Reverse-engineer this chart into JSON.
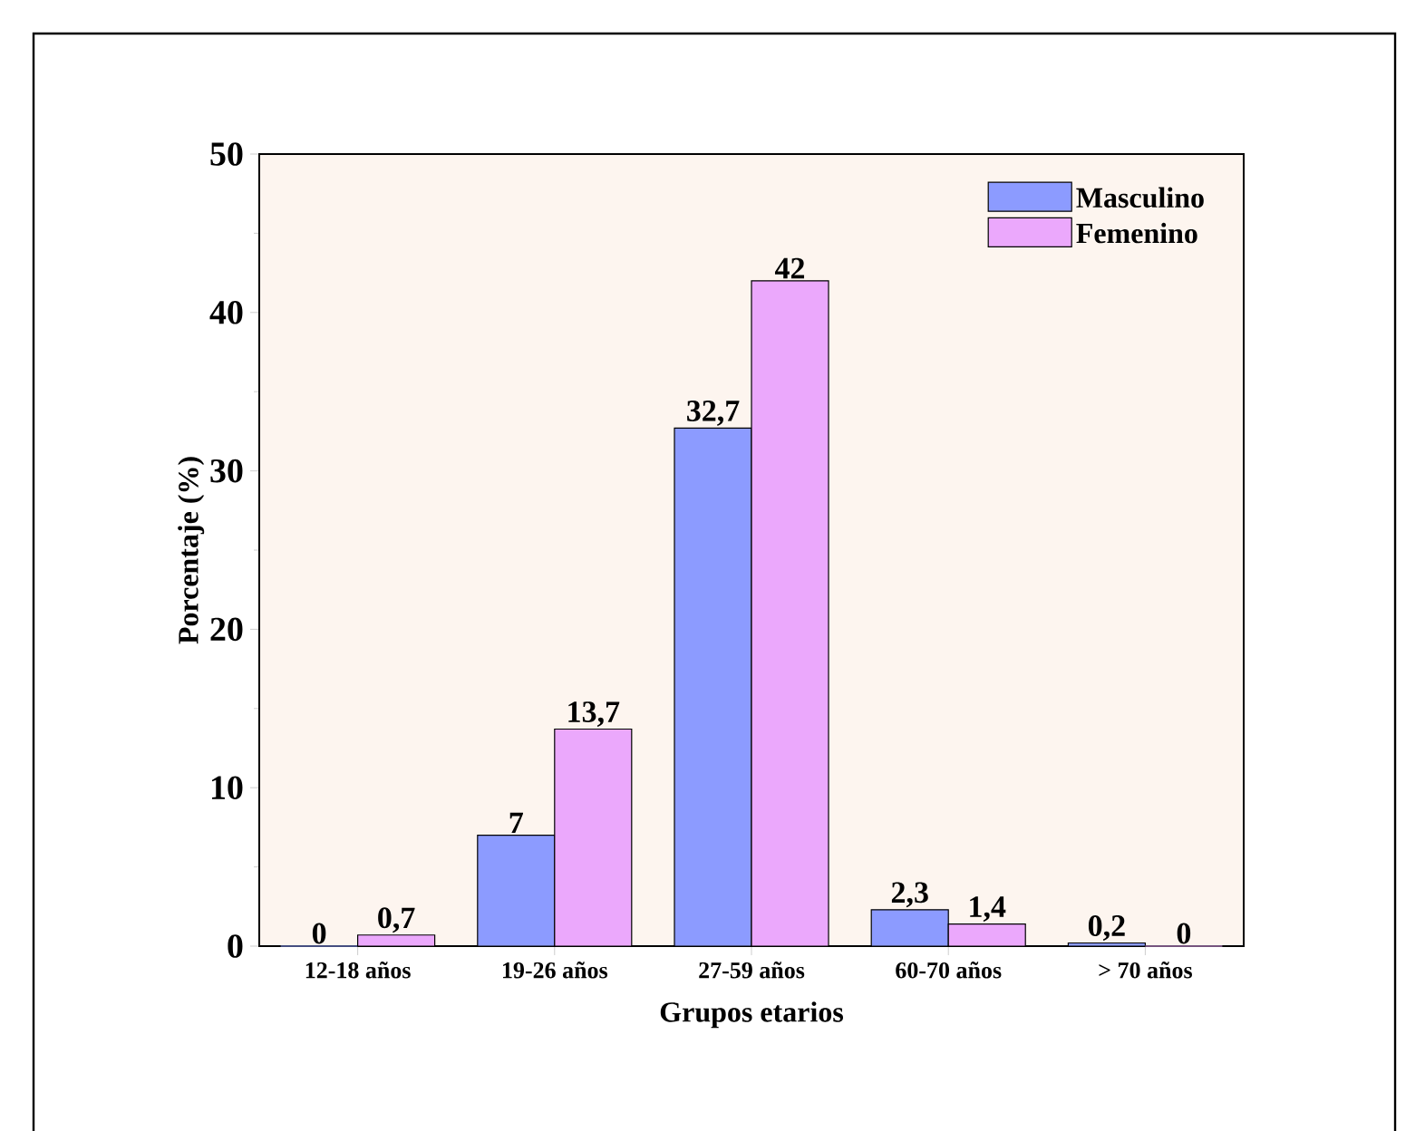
{
  "chart_data": {
    "type": "bar",
    "xlabel": "Grupos etarios",
    "ylabel": "Porcentaje (%)",
    "categories": [
      "12-18 años",
      "19-26 años",
      "27-59 años",
      "60-70 años",
      "> 70 años"
    ],
    "series": [
      {
        "name": "Masculino",
        "color": "#8c9bff",
        "values": [
          0,
          7,
          32.7,
          2.3,
          0.2
        ],
        "value_labels": [
          "0",
          "7",
          "32,7",
          "2,3",
          "0,2"
        ]
      },
      {
        "name": "Femenino",
        "color": "#eba8fc",
        "values": [
          0.7,
          13.7,
          42,
          1.4,
          0
        ],
        "value_labels": [
          "0,7",
          "13,7",
          "42",
          "1,4",
          "0"
        ]
      }
    ],
    "ylim": [
      0,
      50
    ],
    "yticks": [
      0,
      10,
      20,
      30,
      40,
      50
    ],
    "legend": "top right"
  }
}
